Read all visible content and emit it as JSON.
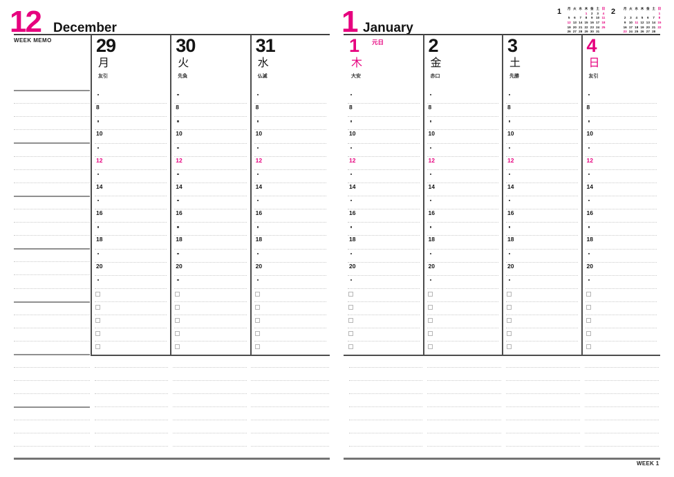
{
  "colors": {
    "accent": "#e6007e",
    "ink": "#141414",
    "rule_dark": "#3f3f3f",
    "faint_line": "#c9c9c9",
    "memo_line": "#8f8f8f"
  },
  "left_page": {
    "month_number": "12",
    "month_name": "December",
    "week_memo_label": "WEEK MEMO",
    "days": [
      {
        "date": "29",
        "weekday": "月",
        "rokuyou": "友引",
        "holiday": "",
        "accent": false
      },
      {
        "date": "30",
        "weekday": "火",
        "rokuyou": "先負",
        "holiday": "",
        "accent": false
      },
      {
        "date": "31",
        "weekday": "水",
        "rokuyou": "仏滅",
        "holiday": "",
        "accent": false
      }
    ]
  },
  "right_page": {
    "month_number": "1",
    "month_name": "January",
    "days": [
      {
        "date": "1",
        "weekday": "木",
        "rokuyou": "大安",
        "holiday": "元日",
        "accent": true
      },
      {
        "date": "2",
        "weekday": "金",
        "rokuyou": "赤口",
        "holiday": "",
        "accent": false
      },
      {
        "date": "3",
        "weekday": "土",
        "rokuyou": "先勝",
        "holiday": "",
        "accent": false
      },
      {
        "date": "4",
        "weekday": "日",
        "rokuyou": "友引",
        "holiday": "",
        "accent": true
      }
    ],
    "mini_calendars": [
      {
        "label": "1",
        "dow": [
          "月",
          "火",
          "水",
          "木",
          "金",
          "土",
          "日"
        ],
        "weeks": [
          [
            "",
            "",
            "",
            "1",
            "2",
            "3",
            "4"
          ],
          [
            "5",
            "6",
            "7",
            "8",
            "9",
            "10",
            "11"
          ],
          [
            "12",
            "13",
            "14",
            "15",
            "16",
            "17",
            "18"
          ],
          [
            "19",
            "20",
            "21",
            "22",
            "23",
            "24",
            "25"
          ],
          [
            "26",
            "27",
            "28",
            "29",
            "30",
            "31",
            ""
          ]
        ],
        "pink_days": [
          "1",
          "4",
          "11",
          "12",
          "18",
          "25"
        ]
      },
      {
        "label": "2",
        "dow": [
          "月",
          "火",
          "水",
          "木",
          "金",
          "土",
          "日"
        ],
        "weeks": [
          [
            "",
            "",
            "",
            "",
            "",
            "",
            "1"
          ],
          [
            "2",
            "3",
            "4",
            "5",
            "6",
            "7",
            "8"
          ],
          [
            "9",
            "10",
            "11",
            "12",
            "13",
            "14",
            "15"
          ],
          [
            "16",
            "17",
            "18",
            "19",
            "20",
            "21",
            "22"
          ],
          [
            "23",
            "24",
            "25",
            "26",
            "27",
            "28",
            ""
          ]
        ],
        "pink_days": [
          "1",
          "8",
          "11",
          "15",
          "22",
          "23"
        ]
      }
    ]
  },
  "schedule": {
    "hour_rows": [
      "7",
      "8",
      "9",
      "10",
      "11",
      "12",
      "13",
      "14",
      "15",
      "16",
      "17",
      "18",
      "19",
      "20",
      "21"
    ],
    "labeled_hours": [
      "8",
      "10",
      "12",
      "14",
      "16",
      "18",
      "20"
    ],
    "accent_hour": "12",
    "todo_rows_per_day": 5
  },
  "footer": {
    "week_label": "WEEK 1"
  }
}
